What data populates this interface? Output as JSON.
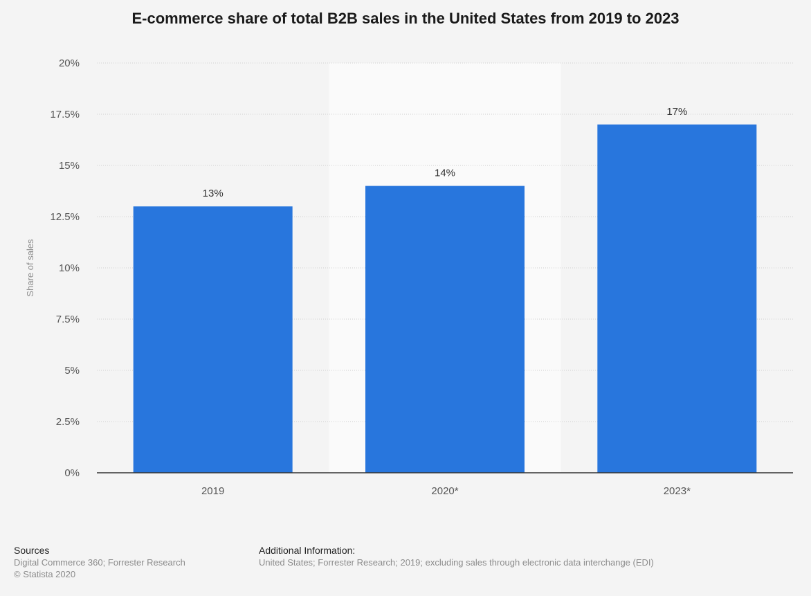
{
  "chart_data": {
    "type": "bar",
    "title": "E-commerce share of total B2B sales in the United States from 2019 to 2023",
    "ylabel": "Share of sales",
    "xlabel": "",
    "categories": [
      "2019",
      "2020*",
      "2023*"
    ],
    "values": [
      13,
      14,
      17
    ],
    "value_labels": [
      "13%",
      "14%",
      "17%"
    ],
    "ylim": [
      0,
      20
    ],
    "yticks": [
      0,
      2.5,
      5,
      7.5,
      10,
      12.5,
      15,
      17.5,
      20
    ],
    "ytick_labels": [
      "0%",
      "2.5%",
      "5%",
      "7.5%",
      "10%",
      "12.5%",
      "15%",
      "17.5%",
      "20%"
    ],
    "grid": true,
    "highlighted_category": "2020*",
    "bar_color": "#2876dd",
    "highlight_band_color": "#fafafa",
    "grid_color": "#cfcfcf",
    "axis_color": "#333333"
  },
  "footer": {
    "sources_heading": "Sources",
    "sources_lines": [
      "Digital Commerce 360; Forrester Research",
      "© Statista 2020"
    ],
    "additional_heading": "Additional Information:",
    "additional_lines": [
      "United States; Forrester Research; 2019; excluding sales through electronic data interchange (EDI)"
    ]
  }
}
